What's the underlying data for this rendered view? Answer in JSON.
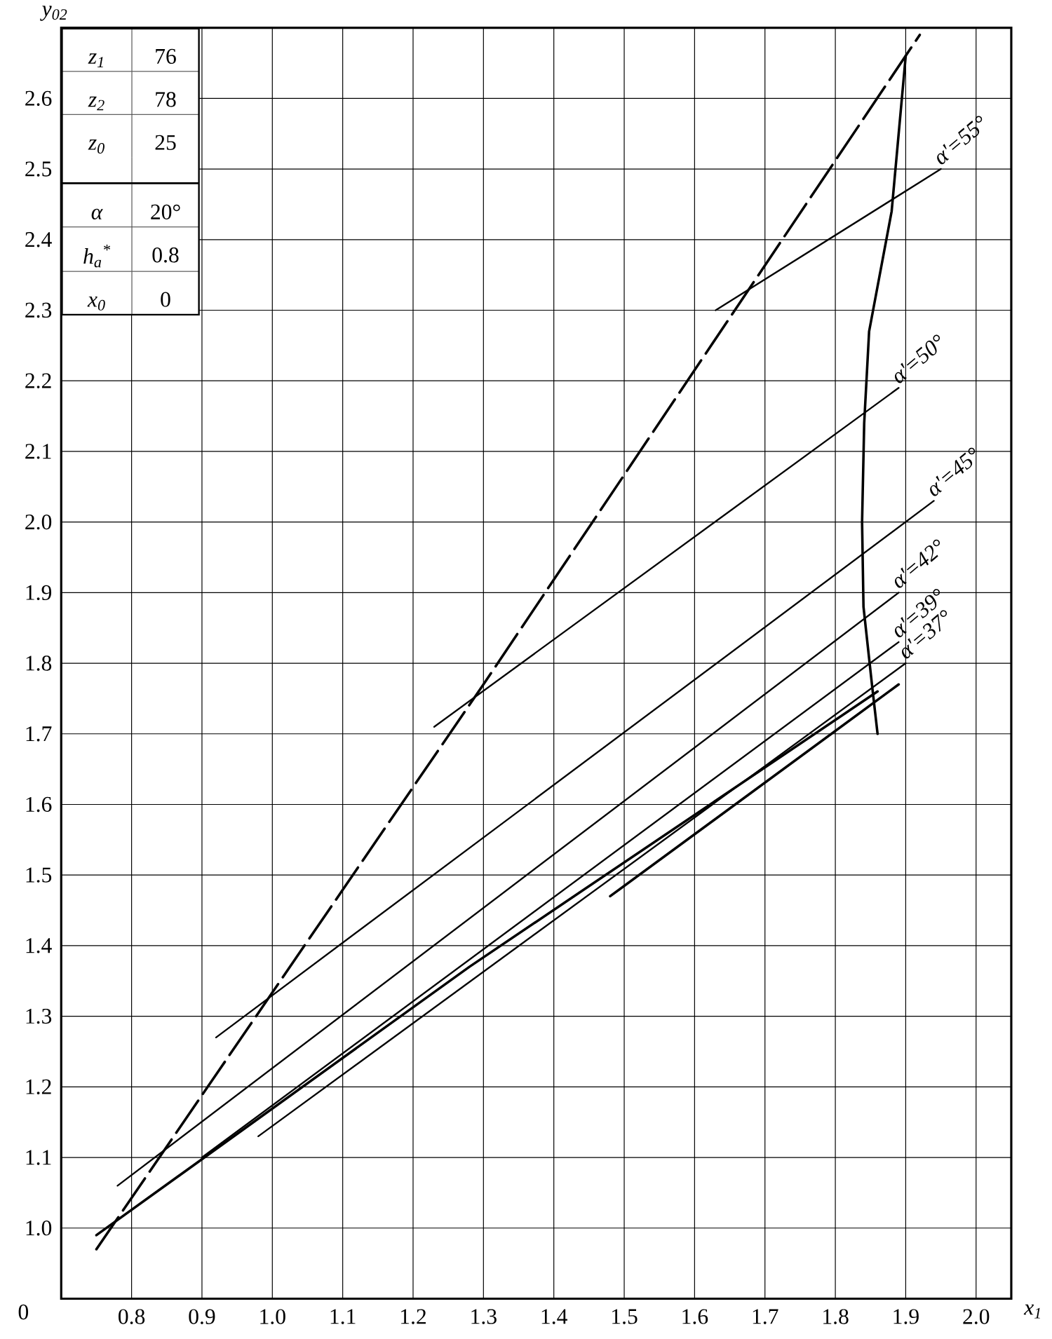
{
  "chart_data": {
    "type": "line",
    "xlabel": "x$_{1}$",
    "ylabel": "y$_{02}$",
    "xlim": [
      0.7,
      2.05
    ],
    "ylim": [
      0.9,
      2.7
    ],
    "xticks": [
      0.8,
      0.9,
      {
        "value": 1.0,
        "label": "1.0"
      },
      1.1,
      1.2,
      1.3,
      1.4,
      1.5,
      1.6,
      1.7,
      1.8,
      1.9,
      {
        "value": 2.0,
        "label": "2.0"
      }
    ],
    "yticks": [
      {
        "value": 1.0,
        "label": "1.0"
      },
      1.1,
      1.2,
      1.3,
      1.4,
      1.5,
      1.6,
      1.7,
      1.8,
      1.9,
      {
        "value": 2.0,
        "label": "2.0"
      },
      2.1,
      2.2,
      2.3,
      2.4,
      2.5,
      2.6
    ],
    "grid": true,
    "legend": false,
    "series": [
      {
        "name": "α'=55°",
        "color": "#000000",
        "x": [
          1.63,
          1.95
        ],
        "values": [
          2.3,
          2.5
        ]
      },
      {
        "name": "α'=50°",
        "color": "#000000",
        "x": [
          1.23,
          1.89
        ],
        "values": [
          1.71,
          2.19
        ]
      },
      {
        "name": "α'=45°",
        "color": "#000000",
        "x": [
          0.92,
          1.94
        ],
        "values": [
          1.27,
          2.03
        ]
      },
      {
        "name": "α'=42°",
        "color": "#000000",
        "x": [
          0.78,
          1.89
        ],
        "values": [
          1.06,
          1.9
        ]
      },
      {
        "name": "α'=39°",
        "color": "#000000",
        "x": [
          0.9,
          1.89
        ],
        "values": [
          1.1,
          1.83
        ]
      },
      {
        "name": "α'=37°",
        "color": "#000000",
        "x": [
          0.98,
          1.9
        ],
        "values": [
          1.13,
          1.8
        ]
      },
      {
        "color": "#000000",
        "x": [
          1.48,
          1.89
        ],
        "values": [
          1.47,
          1.77
        ]
      },
      {
        "color": "#000000",
        "line_style": "dashed",
        "x": [
          0.75,
          1.3,
          1.92
        ],
        "values": [
          0.97,
          1.77,
          2.69
        ]
      },
      {
        "color": "#000000",
        "x": [
          1.9,
          1.88,
          1.848,
          1.841,
          1.838,
          1.84,
          1.852,
          1.86
        ],
        "values": [
          2.66,
          2.44,
          2.27,
          2.14,
          2.0,
          1.88,
          1.77,
          1.7
        ]
      },
      {
        "color": "#000000",
        "x": [
          0.75,
          1.28,
          1.86
        ],
        "values": [
          0.99,
          1.37,
          1.76
        ]
      }
    ],
    "annotations": [
      "0",
      "z$_{1}$",
      "76",
      "z$_{2}$",
      "78",
      "z$_{0}$",
      "25",
      "α",
      "20°",
      "h$_{a}$$^{*}$",
      "0.8",
      "x$_{0}$",
      "0"
    ]
  }
}
